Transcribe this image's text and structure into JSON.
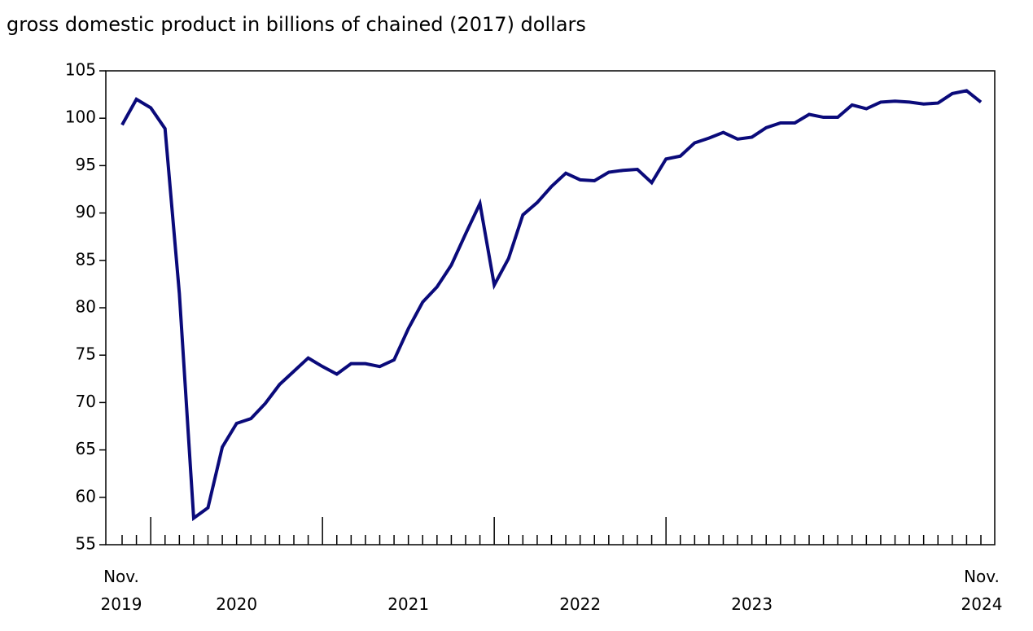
{
  "chart_data": {
    "type": "line",
    "title": "gross domestic product in billions of chained (2017) dollars",
    "categories": [
      "Nov.\n2019",
      null,
      null,
      null,
      null,
      null,
      null,
      null,
      "2020",
      null,
      null,
      null,
      null,
      null,
      null,
      null,
      null,
      null,
      null,
      null,
      "2021",
      null,
      null,
      null,
      null,
      null,
      null,
      null,
      null,
      null,
      null,
      null,
      "2022",
      null,
      null,
      null,
      null,
      null,
      null,
      null,
      null,
      null,
      null,
      null,
      "2023",
      null,
      null,
      null,
      null,
      null,
      null,
      null,
      null,
      null,
      null,
      null,
      null,
      null,
      null,
      null,
      "Nov.\n2024"
    ],
    "series": [
      {
        "color": "#0a0a7a",
        "values": [
          99.3,
          102.0,
          101.1,
          98.9,
          81.5,
          57.8,
          58.9,
          65.3,
          67.8,
          68.3,
          69.9,
          71.9,
          73.3,
          74.7,
          73.8,
          73.0,
          74.1,
          74.1,
          73.8,
          74.5,
          77.8,
          80.6,
          82.2,
          84.5,
          87.8,
          91.0,
          82.4,
          85.2,
          89.8,
          91.1,
          92.8,
          94.2,
          93.5,
          93.4,
          94.3,
          94.5,
          94.6,
          93.2,
          95.7,
          96.0,
          97.4,
          97.9,
          98.5,
          97.8,
          98.0,
          99.0,
          99.5,
          99.5,
          100.4,
          100.1,
          100.1,
          101.4,
          101.0,
          101.7,
          101.8,
          101.7,
          101.5,
          101.6,
          102.6,
          102.9,
          101.7
        ]
      }
    ],
    "ylim": [
      55,
      105
    ],
    "yticks": [
      55,
      60,
      65,
      70,
      75,
      80,
      85,
      90,
      95,
      100,
      105
    ],
    "grid": false
  }
}
